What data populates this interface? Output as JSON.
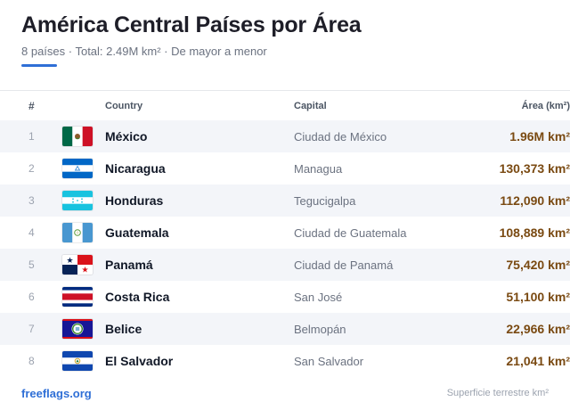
{
  "header": {
    "title": "América Central Países por Área",
    "subtitle": "8 países · Total: 2.49M km² · De mayor a menor"
  },
  "table": {
    "columns": {
      "num": "#",
      "country": "Country",
      "capital": "Capital",
      "area": "Área (km²)"
    },
    "rows": [
      {
        "num": "1",
        "country": "México",
        "capital": "Ciudad de México",
        "area": "1.96M km²",
        "flag": "mexico-flag-icon"
      },
      {
        "num": "2",
        "country": "Nicaragua",
        "capital": "Managua",
        "area": "130,373 km²",
        "flag": "nicaragua-flag-icon"
      },
      {
        "num": "3",
        "country": "Honduras",
        "capital": "Tegucigalpa",
        "area": "112,090 km²",
        "flag": "honduras-flag-icon"
      },
      {
        "num": "4",
        "country": "Guatemala",
        "capital": "Ciudad de Guatemala",
        "area": "108,889 km²",
        "flag": "guatemala-flag-icon"
      },
      {
        "num": "5",
        "country": "Panamá",
        "capital": "Ciudad de Panamá",
        "area": "75,420 km²",
        "flag": "panama-flag-icon"
      },
      {
        "num": "6",
        "country": "Costa Rica",
        "capital": "San José",
        "area": "51,100 km²",
        "flag": "costa-rica-flag-icon"
      },
      {
        "num": "7",
        "country": "Belice",
        "capital": "Belmopán",
        "area": "22,966 km²",
        "flag": "belize-flag-icon"
      },
      {
        "num": "8",
        "country": "El Salvador",
        "capital": "San Salvador",
        "area": "21,041 km²",
        "flag": "el-salvador-flag-icon"
      }
    ]
  },
  "footer": {
    "source": "freeflags.org",
    "note": "Superficie terrestre km²"
  },
  "colors": {
    "accent": "#2f6fd6",
    "area_text": "#7a4a12",
    "stripe": "#f3f5f9"
  }
}
